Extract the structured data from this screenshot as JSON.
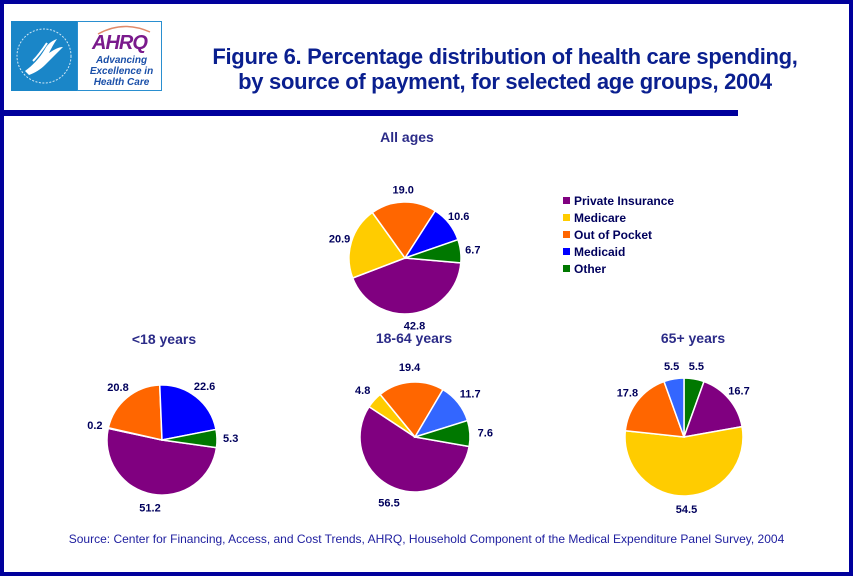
{
  "header": {
    "logo": {
      "hhs_icon": "hhs-eagle-seal-icon",
      "brand": "AHRQ",
      "tagline": "Advancing Excellence in Health Care"
    },
    "title_line1": "Figure 6. Percentage distribution of health care spending,",
    "title_line2": "by source of payment, for selected age groups, 2004"
  },
  "colors": {
    "Private Insurance": "#800080",
    "Medicare": "#ffcc00",
    "Out of Pocket": "#ff6600",
    "Medicaid": "#0000ff",
    "Medicaid (light)": "#3366ff",
    "Other": "#007800",
    "frame": "#00009c",
    "title": "#0a1f8f"
  },
  "chart_data": [
    {
      "type": "pie",
      "title": "All ages",
      "categories": [
        "Private Insurance",
        "Medicare",
        "Out of Pocket",
        "Medicaid",
        "Other"
      ],
      "values": [
        42.8,
        20.9,
        19.0,
        10.6,
        6.7
      ],
      "labels": [
        "42.8",
        "20.9",
        "19.0",
        "10.6",
        "6.7"
      ]
    },
    {
      "type": "pie",
      "title": "<18 years",
      "categories": [
        "Private Insurance",
        "Medicare",
        "Out of Pocket",
        "Medicaid",
        "Other"
      ],
      "values": [
        51.2,
        0.2,
        20.8,
        22.6,
        5.3
      ],
      "labels": [
        "51.2",
        "0.2",
        "20.8",
        "22.6",
        "5.3"
      ]
    },
    {
      "type": "pie",
      "title": "18-64 years",
      "categories": [
        "Private Insurance",
        "Medicare",
        "Out of Pocket",
        "Medicaid",
        "Other"
      ],
      "values": [
        56.5,
        4.8,
        19.4,
        11.7,
        7.6
      ],
      "labels": [
        "56.5",
        "4.8",
        "19.4",
        "11.7",
        "7.6"
      ]
    },
    {
      "type": "pie",
      "title": "65+ years",
      "categories": [
        "Other",
        "Private Insurance",
        "Medicare",
        "Out of Pocket",
        "Medicaid"
      ],
      "values": [
        5.5,
        16.7,
        54.5,
        17.8,
        5.5
      ],
      "labels": [
        "5.5",
        "16.7",
        "54.5",
        "17.8",
        "5.5"
      ]
    }
  ],
  "legend": {
    "placement": "right of All ages pie",
    "items": [
      {
        "label": "Private Insurance",
        "color": "#800080"
      },
      {
        "label": "Medicare",
        "color": "#ffcc00"
      },
      {
        "label": "Out of Pocket",
        "color": "#ff6600"
      },
      {
        "label": "Medicaid",
        "color": "#0000ff"
      },
      {
        "label": "Other",
        "color": "#007800"
      }
    ]
  },
  "source": "Source: Center for Financing, Access, and Cost Trends, AHRQ, Household Component of the Medical Expenditure Panel Survey, 2004"
}
